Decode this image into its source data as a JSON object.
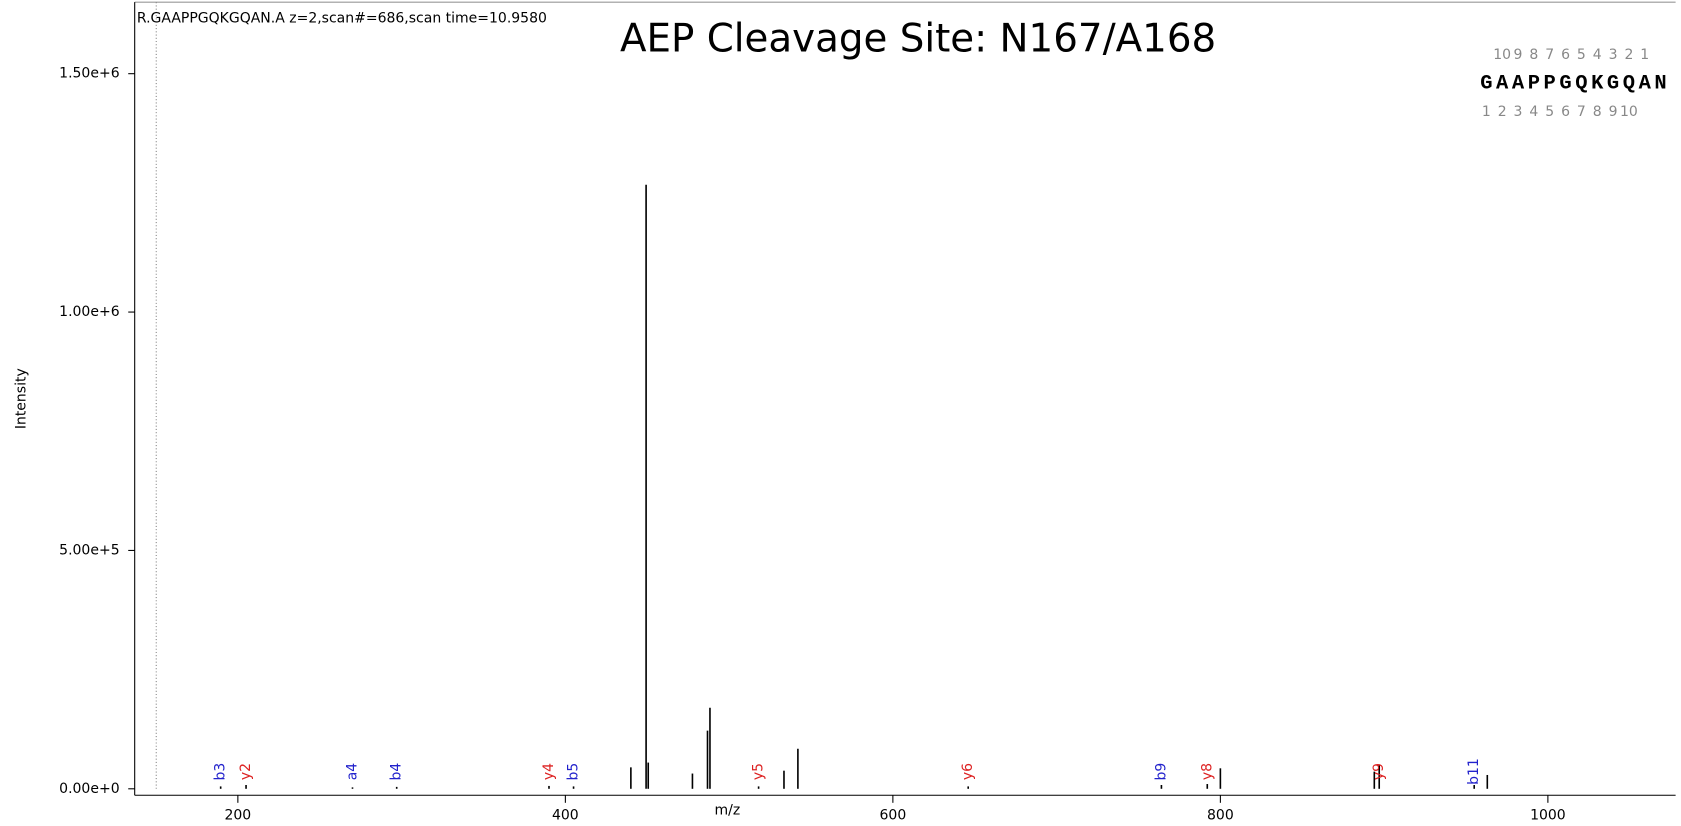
{
  "chart_data": {
    "type": "stem",
    "title": "AEP Cleavage Site: N167/A168",
    "subtitle": "R.GAAPPGQKGQAN.A z=2,scan#=686,scan time=10.9580",
    "x_label": "m/z",
    "y_label": "Intensity",
    "xlim": [
      137,
      1078
    ],
    "ylim": [
      0,
      1650000
    ],
    "xticks": [
      200,
      400,
      600,
      800,
      1000
    ],
    "yticks": [
      {
        "value": 0,
        "label": "0.00e+0"
      },
      {
        "value": 500000,
        "label": "5.00e+5"
      },
      {
        "value": 1000000,
        "label": "1.00e+6"
      },
      {
        "value": 1500000,
        "label": "1.50e+6"
      }
    ],
    "color": "#000000",
    "x": [
      189.5,
      205,
      270,
      297,
      390,
      405,
      440,
      449.3,
      450.6,
      477.6,
      486.8,
      488.3,
      518,
      533.5,
      542,
      646,
      764,
      792,
      800,
      894,
      897,
      955,
      963
    ],
    "values": [
      5000,
      8000,
      3000,
      4000,
      6000,
      5000,
      45000,
      1267000,
      55000,
      32000,
      122000,
      170000,
      5000,
      38000,
      84000,
      5000,
      8000,
      10000,
      43000,
      36000,
      50000,
      8000,
      29000
    ],
    "annotations": [
      {
        "label": "b3",
        "x": 189.5,
        "color": "#2222cc"
      },
      {
        "label": "y2",
        "x": 205,
        "color": "#dd2222"
      },
      {
        "label": "a4",
        "x": 270,
        "color": "#2222cc"
      },
      {
        "label": "b4",
        "x": 297,
        "color": "#2222cc"
      },
      {
        "label": "y4",
        "x": 390,
        "color": "#dd2222"
      },
      {
        "label": "b5",
        "x": 405,
        "color": "#2222cc"
      },
      {
        "label": "y5",
        "x": 518,
        "color": "#dd2222"
      },
      {
        "label": "y6",
        "x": 646,
        "color": "#dd2222"
      },
      {
        "label": "b9",
        "x": 764,
        "color": "#2222cc"
      },
      {
        "label": "y8",
        "x": 792,
        "color": "#dd2222"
      },
      {
        "label": "y9",
        "x": 897,
        "color": "#dd2222"
      },
      {
        "label": "b11",
        "x": 955,
        "color": "#2222cc"
      }
    ],
    "sequence": [
      "G",
      "A",
      "A",
      "P",
      "P",
      "G",
      "Q",
      "K",
      "G",
      "Q",
      "A",
      "N"
    ],
    "y_ion_numbers": [
      "10",
      "9",
      "8",
      "7",
      "6",
      "5",
      "4",
      "3",
      "2",
      "1"
    ],
    "b_ion_numbers": [
      "1",
      "2",
      "3",
      "4",
      "5",
      "6",
      "7",
      "8",
      "9",
      "10"
    ]
  }
}
